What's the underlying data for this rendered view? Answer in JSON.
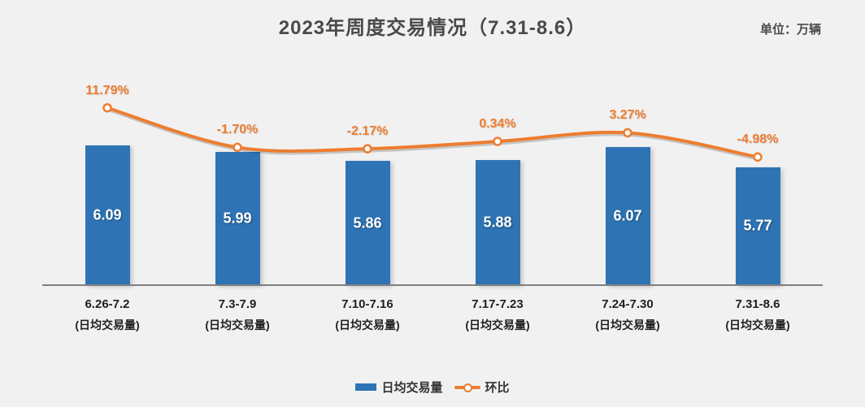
{
  "header": {
    "title": "2023年周度交易情况（7.31-8.6）",
    "unit_label": "单位：万辆"
  },
  "colors": {
    "bar": "#2E74B5",
    "line": "#ED7D31",
    "marker_fill": "#FFFFFF",
    "axis": "#7F7F7F",
    "background": "#F1F1F1",
    "title_text": "#4A4A4A",
    "bar_value_text": "#FFFFFF",
    "x_label_text": "#1F1F1F"
  },
  "legend": {
    "items": [
      {
        "label": "日均交易量",
        "type": "bar"
      },
      {
        "label": "环比",
        "type": "line"
      }
    ]
  },
  "chart_data": {
    "type": "bar",
    "title": "2023年周度交易情况（7.31-8.6）",
    "unit": "万辆",
    "categories": [
      "6.26-7.2",
      "7.3-7.9",
      "7.10-7.16",
      "7.17-7.23",
      "7.24-7.30",
      "7.31-8.6"
    ],
    "category_sublabel": "(日均交易量)",
    "series": [
      {
        "name": "日均交易量",
        "type": "bar",
        "values": [
          6.09,
          5.99,
          5.86,
          5.88,
          6.07,
          5.77
        ],
        "value_labels": [
          "6.09",
          "5.99",
          "5.86",
          "5.88",
          "6.07",
          "5.77"
        ],
        "color": "#2E74B5"
      },
      {
        "name": "环比",
        "type": "line",
        "values": [
          11.79,
          -1.7,
          -2.17,
          0.34,
          3.27,
          -4.98
        ],
        "value_labels": [
          "11.79%",
          "-1.70%",
          "-2.17%",
          "0.34%",
          "3.27%",
          "-4.98%"
        ],
        "color": "#ED7D31"
      }
    ],
    "grid": false,
    "axes_hidden": true,
    "legend_position": "bottom"
  }
}
